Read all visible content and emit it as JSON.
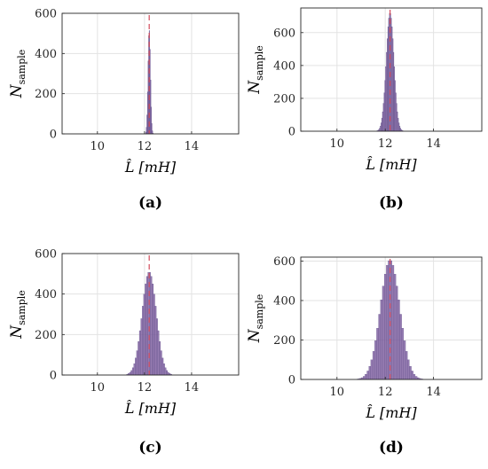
{
  "chart_data": [
    {
      "type": "bar",
      "panel_label": "(a)",
      "xlabel": "L̂ [mH]",
      "ylabel": "N",
      "ylabel_sub": "sample",
      "xlim": [
        8.5,
        16
      ],
      "ylim": [
        0,
        600
      ],
      "xticks": [
        "10",
        "12",
        "14"
      ],
      "yticks": [
        "0",
        "200",
        "400",
        "600"
      ],
      "mean": 12.2,
      "std": 0.05,
      "peak": 520,
      "reference_line": 12.2,
      "grid": true,
      "bar_color": "#7e5ea0",
      "line_color": "#d24a5a"
    },
    {
      "type": "bar",
      "panel_label": "(b)",
      "xlabel": "L̂ [mH]",
      "ylabel": "N",
      "ylabel_sub": "sample",
      "xlim": [
        8.5,
        16
      ],
      "ylim": [
        0,
        750
      ],
      "xticks": [
        "10",
        "12",
        "14"
      ],
      "yticks": [
        "0",
        "200",
        "400",
        "600"
      ],
      "mean": 12.2,
      "std": 0.16,
      "peak": 720,
      "reference_line": 12.2,
      "grid": true,
      "bar_color": "#7e5ea0",
      "line_color": "#d24a5a"
    },
    {
      "type": "bar",
      "panel_label": "(c)",
      "xlabel": "L̂ [mH]",
      "ylabel": "N",
      "ylabel_sub": "sample",
      "xlim": [
        8.5,
        16
      ],
      "ylim": [
        0,
        600
      ],
      "xticks": [
        "10",
        "12",
        "14"
      ],
      "yticks": [
        "0",
        "200",
        "400",
        "600"
      ],
      "mean": 12.2,
      "std": 0.3,
      "peak": 510,
      "reference_line": 12.2,
      "grid": true,
      "bar_color": "#7e5ea0",
      "line_color": "#d24a5a"
    },
    {
      "type": "bar",
      "panel_label": "(d)",
      "xlabel": "L̂ [mH]",
      "ylabel": "N",
      "ylabel_sub": "sample",
      "xlim": [
        8.5,
        16
      ],
      "ylim": [
        0,
        620
      ],
      "xticks": [
        "10",
        "12",
        "14"
      ],
      "yticks": [
        "0",
        "200",
        "400",
        "600"
      ],
      "mean": 12.2,
      "std": 0.4,
      "peak": 605,
      "reference_line": 12.2,
      "grid": true,
      "bar_color": "#7e5ea0",
      "line_color": "#d24a5a"
    }
  ]
}
